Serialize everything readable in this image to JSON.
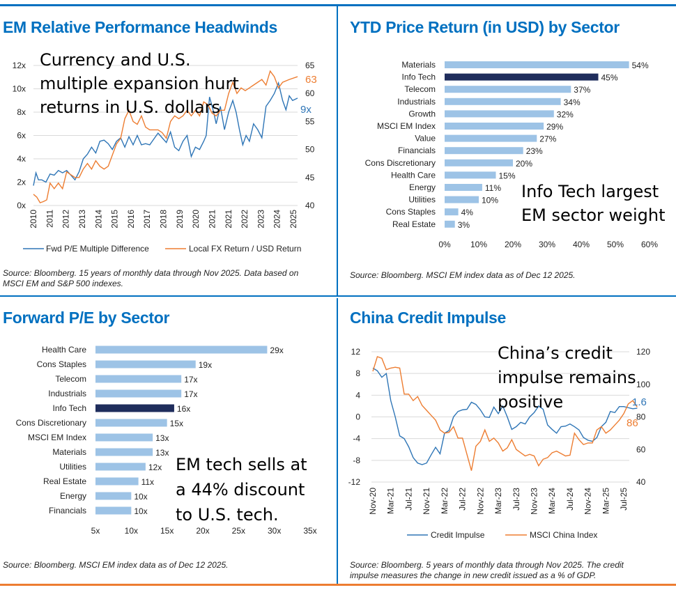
{
  "colors": {
    "blue": "#2e75b6",
    "orange": "#ed7d31",
    "accent": "#0070c0",
    "bar": "#9dc3e6",
    "highlight": "#1f2d5c"
  },
  "panels": [
    {
      "title": "EM Relative Performance Headwinds",
      "annotation": [
        "Currency and U.S.",
        "multiple expansion hurt",
        "returns in U.S. dollars"
      ],
      "source": [
        "Source: Bloomberg. 15 years of monthly data through Nov 2025. Data based on",
        "MSCI EM and S&P 500 indexes."
      ],
      "end_labels": {
        "left": "9x",
        "right": "63"
      }
    },
    {
      "title": "YTD Price Return (in USD) by Sector",
      "annotation": [
        "Info Tech largest",
        "EM sector weight"
      ],
      "source": [
        "Source: Bloomberg. MSCI EM index data as of Dec 12 2025."
      ]
    },
    {
      "title": "Forward P/E by Sector",
      "annotation": [
        "EM tech sells at",
        "a 44% discount",
        "to U.S. tech."
      ],
      "source": [
        "Source: Bloomberg. MSCI EM index data as of Dec 12 2025."
      ]
    },
    {
      "title": "China Credit Impulse",
      "annotation": [
        "China’s credit",
        "impulse remains",
        "positive"
      ],
      "source": [
        "Source: Bloomberg. 5 years of monthly data through Nov 2025. The credit",
        "impulse measures the change in new credit issued as a % of GDP."
      ],
      "end_labels": {
        "left": "1.6",
        "right": "86"
      }
    }
  ],
  "chart_data": [
    {
      "type": "line",
      "title": "EM Relative Performance Headwinds",
      "x_ticks": [
        "2010",
        "2011",
        "2012",
        "2013",
        "2014",
        "2015",
        "2016",
        "2017",
        "2018",
        "2019",
        "2020",
        "2021",
        "2021",
        "2022",
        "2023",
        "2024",
        "2025"
      ],
      "y_left": {
        "ticks": [
          "0x",
          "2x",
          "4x",
          "6x",
          "8x",
          "10x",
          "12x"
        ],
        "range": [
          0,
          12
        ]
      },
      "y_right": {
        "ticks": [
          "40",
          "45",
          "50",
          "55",
          "60",
          "65"
        ],
        "range": [
          40,
          65
        ]
      },
      "grid": true,
      "legend": "bottom",
      "x_range": [
        2010,
        2025.9
      ],
      "series": [
        {
          "name": "Fwd P/E Multiple Difference",
          "axis": "left",
          "color": "#2e75b6",
          "x": [
            2010,
            2010.15,
            2010.3,
            2010.5,
            2010.75,
            2011,
            2011.25,
            2011.5,
            2011.75,
            2012,
            2012.25,
            2012.5,
            2012.75,
            2013,
            2013.25,
            2013.5,
            2013.75,
            2014,
            2014.25,
            2014.5,
            2014.75,
            2015,
            2015.25,
            2015.5,
            2015.75,
            2016,
            2016.25,
            2016.5,
            2016.75,
            2017,
            2017.25,
            2017.5,
            2017.75,
            2018,
            2018.25,
            2018.5,
            2018.75,
            2019,
            2019.25,
            2019.5,
            2019.75,
            2020,
            2020.25,
            2020.4,
            2020.6,
            2020.85,
            2021,
            2021.25,
            2021.5,
            2021.75,
            2022,
            2022.2,
            2022.4,
            2022.6,
            2022.8,
            2023,
            2023.25,
            2023.5,
            2023.75,
            2024,
            2024.25,
            2024.5,
            2024.75,
            2025,
            2025.2,
            2025.4,
            2025.6,
            2025.9
          ],
          "y": [
            1.7,
            2.8,
            2.2,
            2.2,
            2.0,
            2.7,
            2.6,
            3.0,
            2.8,
            3.0,
            2.6,
            2.2,
            2.9,
            4.0,
            4.4,
            5.0,
            4.5,
            5.5,
            5.6,
            5.3,
            4.8,
            5.5,
            5.8,
            5.0,
            5.9,
            5.2,
            6.0,
            5.2,
            5.3,
            5.2,
            5.7,
            6.2,
            5.8,
            5.4,
            6.3,
            5.0,
            4.7,
            5.5,
            6.0,
            4.2,
            5.0,
            4.8,
            5.5,
            6.0,
            9.3,
            8.0,
            7.0,
            8.5,
            6.5,
            8.0,
            9.0,
            8.0,
            6.5,
            5.2,
            6.0,
            5.5,
            7.0,
            6.5,
            5.8,
            8.5,
            9.0,
            9.6,
            10.5,
            9.0,
            8.2,
            9.4,
            9.0,
            9.2
          ]
        },
        {
          "name": "Local FX Return / USD Return",
          "axis": "right",
          "color": "#ed7d31",
          "x": [
            2010,
            2010.2,
            2010.4,
            2010.6,
            2010.8,
            2011,
            2011.25,
            2011.5,
            2011.75,
            2012,
            2012.25,
            2012.5,
            2012.75,
            2013,
            2013.25,
            2013.5,
            2013.75,
            2014,
            2014.25,
            2014.5,
            2014.75,
            2015,
            2015.25,
            2015.5,
            2015.75,
            2016,
            2016.25,
            2016.5,
            2016.75,
            2017,
            2017.25,
            2017.5,
            2017.75,
            2018,
            2018.25,
            2018.5,
            2018.75,
            2019,
            2019.25,
            2019.5,
            2019.75,
            2020,
            2020.25,
            2020.5,
            2020.75,
            2021,
            2021.25,
            2021.5,
            2021.75,
            2022,
            2022.25,
            2022.5,
            2022.75,
            2023,
            2023.25,
            2023.5,
            2023.75,
            2024,
            2024.25,
            2024.5,
            2024.75,
            2025,
            2025.4,
            2025.9
          ],
          "y": [
            42,
            41.5,
            40.5,
            40.7,
            41,
            44,
            43,
            44,
            43,
            46,
            45.5,
            45,
            45,
            46.5,
            47.5,
            46.5,
            48,
            47,
            46.5,
            47,
            49,
            51,
            52,
            55.5,
            57,
            55,
            54.5,
            56,
            54,
            53.5,
            53.5,
            53.5,
            53,
            52,
            55,
            56,
            55.5,
            56,
            57,
            56,
            57,
            56,
            58.5,
            58,
            56.5,
            56,
            57,
            57,
            60,
            62,
            60,
            61,
            60.5,
            61,
            61.5,
            62,
            62.5,
            61.5,
            64,
            63,
            61,
            62,
            62.5,
            63
          ]
        }
      ]
    },
    {
      "type": "bar",
      "orientation": "horizontal",
      "title": "YTD Price Return (in USD) by Sector",
      "categories": [
        "Materials",
        "Info Tech",
        "Telecom",
        "Industrials",
        "Growth",
        "MSCI EM Index",
        "Value",
        "Financials",
        "Cons Discretionary",
        "Health Care",
        "Energy",
        "Utilities",
        "Cons Staples",
        "Real Estate"
      ],
      "values": [
        54,
        45,
        37,
        34,
        32,
        29,
        27,
        23,
        20,
        15,
        11,
        10,
        4,
        3
      ],
      "value_labels": [
        "54%",
        "45%",
        "37%",
        "34%",
        "32%",
        "29%",
        "27%",
        "23%",
        "20%",
        "15%",
        "11%",
        "10%",
        "4%",
        "3%"
      ],
      "highlight": "Info Tech",
      "x_ticks": [
        "0%",
        "10%",
        "20%",
        "30%",
        "40%",
        "50%",
        "60%"
      ],
      "xlim": [
        0,
        60
      ]
    },
    {
      "type": "bar",
      "orientation": "horizontal",
      "title": "Forward P/E by Sector",
      "categories": [
        "Health Care",
        "Cons Staples",
        "Telecom",
        "Industrials",
        "Info Tech",
        "Cons Discretionary",
        "MSCI EM Index",
        "Materials",
        "Utilities",
        "Real Estate",
        "Energy",
        "Financials"
      ],
      "values": [
        29,
        19,
        17,
        17,
        16,
        15,
        13,
        13,
        12,
        11,
        10,
        10
      ],
      "value_labels": [
        "29x",
        "19x",
        "17x",
        "17x",
        "16x",
        "15x",
        "13x",
        "13x",
        "12x",
        "11x",
        "10x",
        "10x"
      ],
      "highlight": "Info Tech",
      "x_ticks": [
        "5x",
        "10x",
        "15x",
        "20x",
        "25x",
        "30x",
        "35x"
      ],
      "xlim": [
        5,
        35
      ]
    },
    {
      "type": "line",
      "title": "China Credit Impulse",
      "x_ticks": [
        "Nov-20",
        "Mar-21",
        "Jul-21",
        "Nov-21",
        "Mar-22",
        "Jul-22",
        "Nov-22",
        "Mar-23",
        "Jul-23",
        "Nov-23",
        "Mar-24",
        "Jul-24",
        "Nov-24",
        "Mar-25",
        "Jul-25"
      ],
      "x_start": "Nov-20",
      "x_end": "Oct-25",
      "y_left": {
        "ticks": [
          "-12",
          "-8",
          "-4",
          "0",
          "4",
          "8",
          "12"
        ],
        "range": [
          -12,
          12
        ]
      },
      "y_right": {
        "ticks": [
          "40",
          "60",
          "80",
          "100",
          "120"
        ],
        "range": [
          40,
          120
        ]
      },
      "grid": true,
      "legend": "bottom",
      "series": [
        {
          "name": "Credit Impulse",
          "axis": "left",
          "color": "#2e75b6",
          "y": [
            9,
            8.5,
            7.3,
            8,
            3,
            0,
            -3.5,
            -4,
            -5.5,
            -7.5,
            -8.5,
            -8.8,
            -8.5,
            -7,
            -5.6,
            -6.8,
            -3,
            -2.5,
            0,
            1,
            1.3,
            1.4,
            2.7,
            2.3,
            1.3,
            0,
            -0.1,
            1.8,
            0.6,
            2,
            0,
            -2.3,
            -1.8,
            -1,
            -1.3,
            0,
            0.8,
            2,
            1.4,
            -1.5,
            -2.3,
            -3,
            -1.8,
            -1.7,
            -1.3,
            -1.8,
            -2.4,
            -3.8,
            -4.3,
            -4.5,
            -3.8,
            -1.8,
            -1,
            1,
            0.8,
            1.9,
            1.9,
            1.7,
            1.5,
            1.6
          ]
        },
        {
          "name": "MSCI China Index",
          "axis": "right",
          "color": "#ed7d31",
          "y": [
            108,
            117,
            116,
            109,
            110,
            110.5,
            110,
            94,
            94,
            90,
            92.5,
            87,
            84,
            81,
            78,
            72,
            70,
            70.5,
            74,
            67,
            67,
            57,
            47,
            62,
            65,
            72,
            65,
            67,
            64,
            59,
            61,
            66,
            60,
            58,
            56,
            57,
            56,
            50,
            54,
            55,
            58,
            59,
            57.5,
            56,
            56.5,
            70,
            66,
            63,
            64,
            64,
            72,
            74,
            70,
            72,
            75,
            78,
            82,
            88,
            90,
            86
          ]
        }
      ]
    }
  ]
}
